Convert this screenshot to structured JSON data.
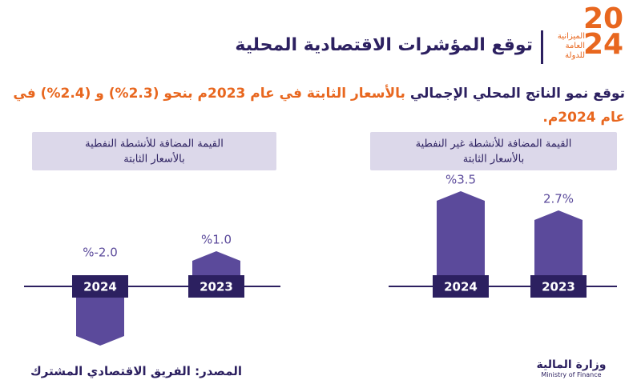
{
  "header": {
    "logo_year": [
      "20",
      "24"
    ],
    "logo_text": [
      "الميزانية",
      "العامة",
      "للدولة"
    ],
    "title": "توقع المؤشرات الاقتصادية المحلية"
  },
  "summary": {
    "lead": "توقع نمو الناتج المحلي الإجمالي",
    "rest": "بالأسعار الثابتة في عام 2023م بنحو (2.3%) و (2.4%) في عام 2024م."
  },
  "chart_data": [
    {
      "type": "bar",
      "title": "القيمة المضافة للأنشطة غير النفطية",
      "subtitle": "بالأسعار الثابتة",
      "categories": [
        "2024",
        "2023"
      ],
      "values": [
        3.5,
        2.7
      ],
      "value_labels": [
        "%3.5",
        "2.7%"
      ],
      "color": "#5b4a9b"
    },
    {
      "type": "bar",
      "title": "القيمة المضافة للأنشطة النفطية",
      "subtitle": "بالأسعار الثابتة",
      "categories": [
        "2024",
        "2023"
      ],
      "values": [
        -2.0,
        1.0
      ],
      "value_labels": [
        "%-2.0",
        "%1.0"
      ],
      "color": "#5b4a9b"
    }
  ],
  "footer": {
    "source": "المصدر: الفريق الاقتصادي المشترك",
    "ministry_ar": "وزارة المالية",
    "ministry_en": "Ministry of Finance"
  }
}
